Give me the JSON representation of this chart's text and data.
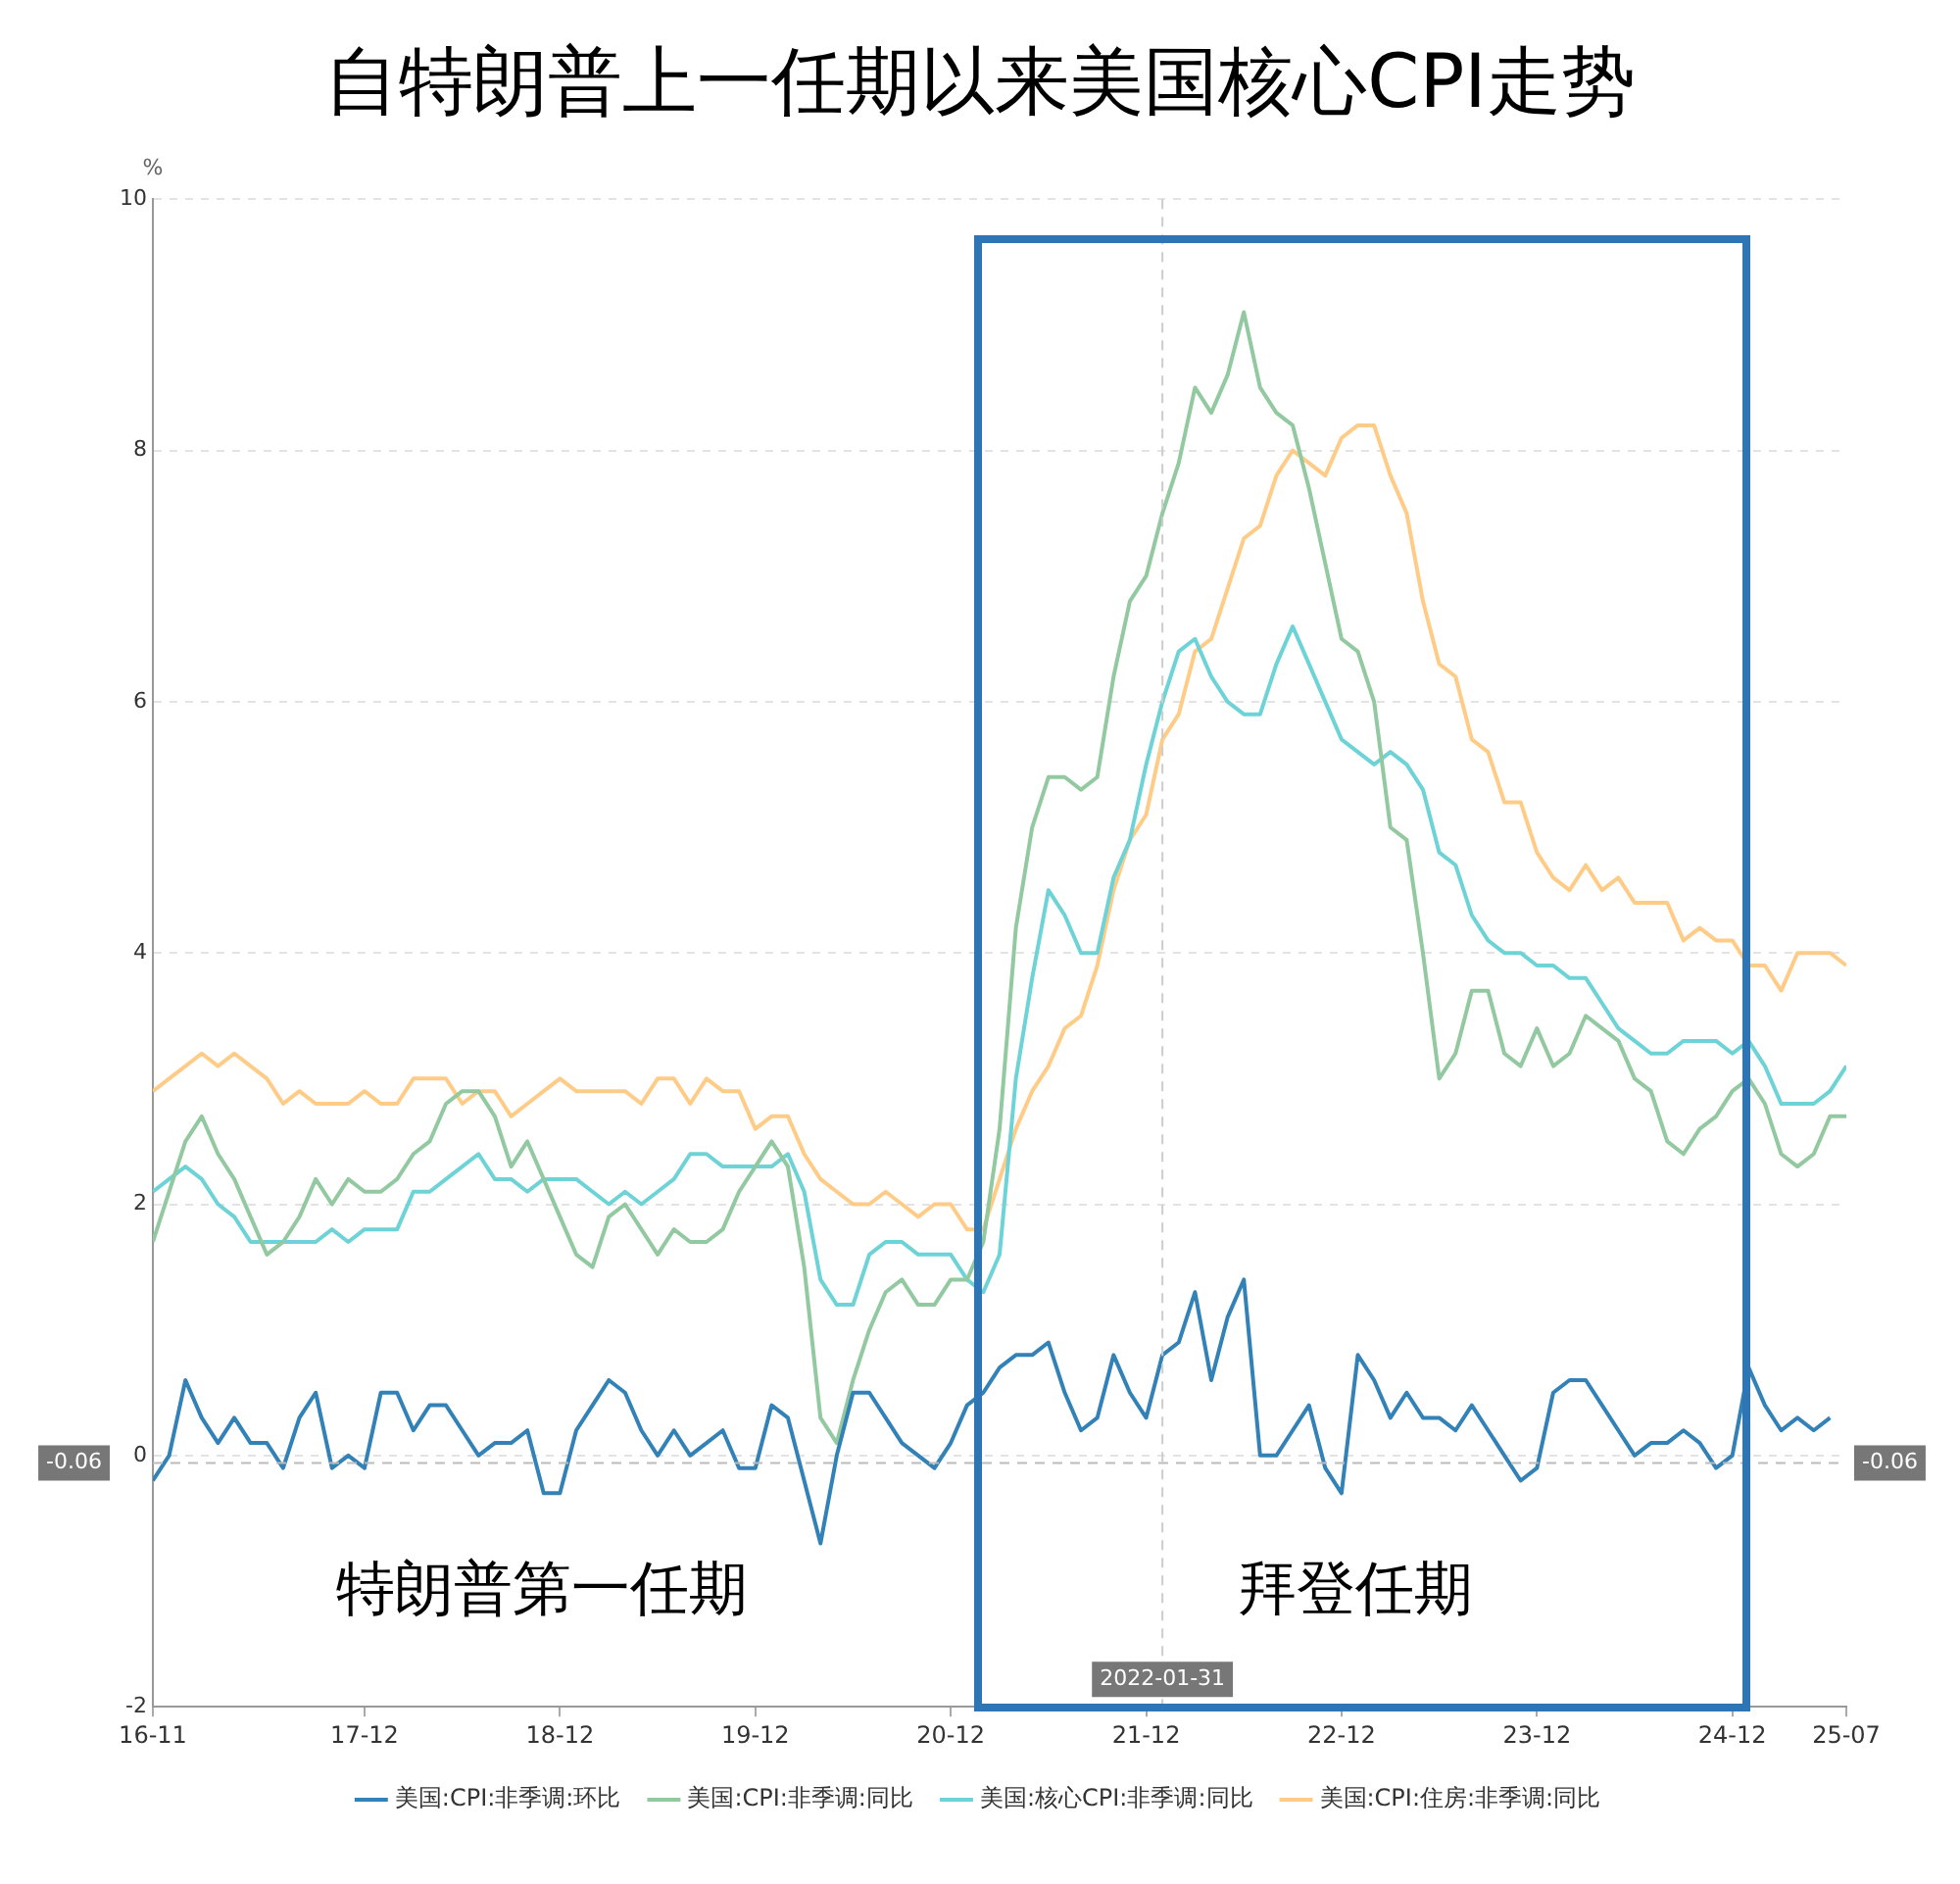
{
  "chart_data": {
    "type": "line",
    "title": "自特朗普上一任期以来美国核心CPI走势",
    "ylabel": "%",
    "x": [
      "2016-11",
      "2016-12",
      "2017-01",
      "2017-02",
      "2017-03",
      "2017-04",
      "2017-05",
      "2017-06",
      "2017-07",
      "2017-08",
      "2017-09",
      "2017-10",
      "2017-11",
      "2017-12",
      "2018-01",
      "2018-02",
      "2018-03",
      "2018-04",
      "2018-05",
      "2018-06",
      "2018-07",
      "2018-08",
      "2018-09",
      "2018-10",
      "2018-11",
      "2018-12",
      "2019-01",
      "2019-02",
      "2019-03",
      "2019-04",
      "2019-05",
      "2019-06",
      "2019-07",
      "2019-08",
      "2019-09",
      "2019-10",
      "2019-11",
      "2019-12",
      "2020-01",
      "2020-02",
      "2020-03",
      "2020-04",
      "2020-05",
      "2020-06",
      "2020-07",
      "2020-08",
      "2020-09",
      "2020-10",
      "2020-11",
      "2020-12",
      "2021-01",
      "2021-02",
      "2021-03",
      "2021-04",
      "2021-05",
      "2021-06",
      "2021-07",
      "2021-08",
      "2021-09",
      "2021-10",
      "2021-11",
      "2021-12",
      "2022-01",
      "2022-02",
      "2022-03",
      "2022-04",
      "2022-05",
      "2022-06",
      "2022-07",
      "2022-08",
      "2022-09",
      "2022-10",
      "2022-11",
      "2022-12",
      "2023-01",
      "2023-02",
      "2023-03",
      "2023-04",
      "2023-05",
      "2023-06",
      "2023-07",
      "2023-08",
      "2023-09",
      "2023-10",
      "2023-11",
      "2023-12",
      "2024-01",
      "2024-02",
      "2024-03",
      "2024-04",
      "2024-05",
      "2024-06",
      "2024-07",
      "2024-08",
      "2024-09",
      "2024-10",
      "2024-11",
      "2024-12",
      "2025-01",
      "2025-02",
      "2025-03",
      "2025-04",
      "2025-05",
      "2025-06",
      "2025-07"
    ],
    "series": [
      {
        "name": "美国:CPI:非季调:环比",
        "color": "#3282b8",
        "values": [
          -0.2,
          0.0,
          0.6,
          0.3,
          0.1,
          0.3,
          0.1,
          0.1,
          -0.1,
          0.3,
          0.5,
          -0.1,
          0.0,
          -0.1,
          0.5,
          0.5,
          0.2,
          0.4,
          0.4,
          0.2,
          0.0,
          0.1,
          0.1,
          0.2,
          -0.3,
          -0.3,
          0.2,
          0.4,
          0.6,
          0.5,
          0.2,
          0.0,
          0.2,
          0.0,
          0.1,
          0.2,
          -0.1,
          -0.1,
          0.4,
          0.3,
          -0.2,
          -0.7,
          0.0,
          0.5,
          0.5,
          0.3,
          0.1,
          0.0,
          -0.1,
          0.1,
          0.4,
          0.5,
          0.7,
          0.8,
          0.8,
          0.9,
          0.5,
          0.2,
          0.3,
          0.8,
          0.5,
          0.3,
          0.8,
          0.9,
          1.3,
          0.6,
          1.1,
          1.4,
          0.0,
          0.0,
          0.2,
          0.4,
          -0.1,
          -0.3,
          0.8,
          0.6,
          0.3,
          0.5,
          0.3,
          0.3,
          0.2,
          0.4,
          0.2,
          0.0,
          -0.2,
          -0.1,
          0.5,
          0.6,
          0.6,
          0.4,
          0.2,
          0.0,
          0.1,
          0.1,
          0.2,
          0.1,
          -0.1,
          0.0,
          0.7,
          0.4,
          0.2,
          0.3,
          0.2,
          0.3,
          null
        ]
      },
      {
        "name": "美国:CPI:非季调:同比",
        "color": "#93c9a0",
        "values": [
          1.7,
          2.1,
          2.5,
          2.7,
          2.4,
          2.2,
          1.9,
          1.6,
          1.7,
          1.9,
          2.2,
          2.0,
          2.2,
          2.1,
          2.1,
          2.2,
          2.4,
          2.5,
          2.8,
          2.9,
          2.9,
          2.7,
          2.3,
          2.5,
          2.2,
          1.9,
          1.6,
          1.5,
          1.9,
          2.0,
          1.8,
          1.6,
          1.8,
          1.7,
          1.7,
          1.8,
          2.1,
          2.3,
          2.5,
          2.3,
          1.5,
          0.3,
          0.1,
          0.6,
          1.0,
          1.3,
          1.4,
          1.2,
          1.2,
          1.4,
          1.4,
          1.7,
          2.6,
          4.2,
          5.0,
          5.4,
          5.4,
          5.3,
          5.4,
          6.2,
          6.8,
          7.0,
          7.5,
          7.9,
          8.5,
          8.3,
          8.6,
          9.1,
          8.5,
          8.3,
          8.2,
          7.7,
          7.1,
          6.5,
          6.4,
          6.0,
          5.0,
          4.9,
          4.0,
          3.0,
          3.2,
          3.7,
          3.7,
          3.2,
          3.1,
          3.4,
          3.1,
          3.2,
          3.5,
          3.4,
          3.3,
          3.0,
          2.9,
          2.5,
          2.4,
          2.6,
          2.7,
          2.9,
          3.0,
          2.8,
          2.4,
          2.3,
          2.4,
          2.7,
          2.7
        ]
      },
      {
        "name": "美国:核心CPI:非季调:同比",
        "color": "#6dd3d6",
        "values": [
          2.1,
          2.2,
          2.3,
          2.2,
          2.0,
          1.9,
          1.7,
          1.7,
          1.7,
          1.7,
          1.7,
          1.8,
          1.7,
          1.8,
          1.8,
          1.8,
          2.1,
          2.1,
          2.2,
          2.3,
          2.4,
          2.2,
          2.2,
          2.1,
          2.2,
          2.2,
          2.2,
          2.1,
          2.0,
          2.1,
          2.0,
          2.1,
          2.2,
          2.4,
          2.4,
          2.3,
          2.3,
          2.3,
          2.3,
          2.4,
          2.1,
          1.4,
          1.2,
          1.2,
          1.6,
          1.7,
          1.7,
          1.6,
          1.6,
          1.6,
          1.4,
          1.3,
          1.6,
          3.0,
          3.8,
          4.5,
          4.3,
          4.0,
          4.0,
          4.6,
          4.9,
          5.5,
          6.0,
          6.4,
          6.5,
          6.2,
          6.0,
          5.9,
          5.9,
          6.3,
          6.6,
          6.3,
          6.0,
          5.7,
          5.6,
          5.5,
          5.6,
          5.5,
          5.3,
          4.8,
          4.7,
          4.3,
          4.1,
          4.0,
          4.0,
          3.9,
          3.9,
          3.8,
          3.8,
          3.6,
          3.4,
          3.3,
          3.2,
          3.2,
          3.3,
          3.3,
          3.3,
          3.2,
          3.3,
          3.1,
          2.8,
          2.8,
          2.8,
          2.9,
          3.1
        ]
      },
      {
        "name": "美国:CPI:住房:非季调:同比",
        "color": "#ffcc88",
        "values": [
          2.9,
          3.0,
          3.1,
          3.2,
          3.1,
          3.2,
          3.1,
          3.0,
          2.8,
          2.9,
          2.8,
          2.8,
          2.8,
          2.9,
          2.8,
          2.8,
          3.0,
          3.0,
          3.0,
          2.8,
          2.9,
          2.9,
          2.7,
          2.8,
          2.9,
          3.0,
          2.9,
          2.9,
          2.9,
          2.9,
          2.8,
          3.0,
          3.0,
          2.8,
          3.0,
          2.9,
          2.9,
          2.6,
          2.7,
          2.7,
          2.4,
          2.2,
          2.1,
          2.0,
          2.0,
          2.1,
          2.0,
          1.9,
          2.0,
          2.0,
          1.8,
          1.8,
          2.2,
          2.6,
          2.9,
          3.1,
          3.4,
          3.5,
          3.9,
          4.5,
          4.9,
          5.1,
          5.7,
          5.9,
          6.4,
          6.5,
          6.9,
          7.3,
          7.4,
          7.8,
          8.0,
          7.9,
          7.8,
          8.1,
          8.2,
          8.2,
          7.8,
          7.5,
          6.8,
          6.3,
          6.2,
          5.7,
          5.6,
          5.2,
          5.2,
          4.8,
          4.6,
          4.5,
          4.7,
          4.5,
          4.6,
          4.4,
          4.4,
          4.4,
          4.1,
          4.2,
          4.1,
          4.1,
          3.9,
          3.9,
          3.7,
          4.0,
          4.0,
          4.0,
          3.9
        ]
      }
    ],
    "xlim": [
      "2016-11",
      "2025-07"
    ],
    "xticks": [
      {
        "value": "2016-11",
        "label": "16-11"
      },
      {
        "value": "2017-12",
        "label": "17-12"
      },
      {
        "value": "2018-12",
        "label": "18-12"
      },
      {
        "value": "2019-12",
        "label": "19-12"
      },
      {
        "value": "2020-12",
        "label": "20-12"
      },
      {
        "value": "2021-12",
        "label": "21-12"
      },
      {
        "value": "2022-12",
        "label": "22-12"
      },
      {
        "value": "2023-12",
        "label": "23-12"
      },
      {
        "value": "2024-12",
        "label": "24-12"
      },
      {
        "value": "2025-07",
        "label": "25-07"
      }
    ],
    "ylim": [
      -2,
      10
    ],
    "yticks": [
      -2,
      0,
      2,
      4,
      6,
      8,
      10
    ],
    "grid": "y",
    "legend": "bottom",
    "line_style": "solid",
    "ref_lines": [
      {
        "axis": "y",
        "value": -0.06,
        "label": "-0.06",
        "color": "#bbbbbb",
        "line_style": "dashed"
      },
      {
        "axis": "x",
        "value": "2022-01",
        "label": "2022-01-31",
        "color": "#cccccc",
        "line_style": "dashed"
      }
    ],
    "annotations": [
      "特朗普第一任期",
      "拜登任期"
    ]
  }
}
